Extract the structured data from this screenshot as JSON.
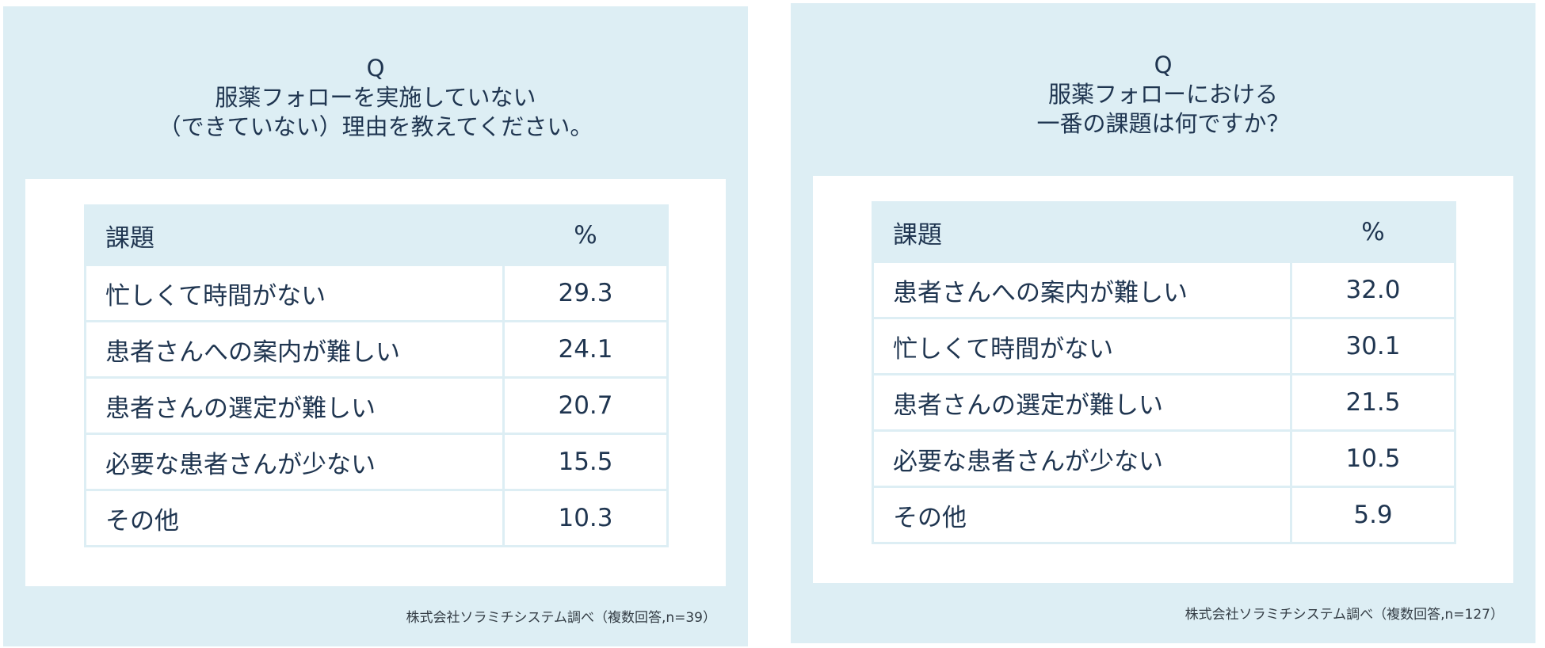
{
  "chart_data": [
    {
      "type": "table",
      "question": [
        "Q",
        "服薬フォローを実施していない",
        "（できていない）理由を教えてください。"
      ],
      "columns": [
        "課題",
        "%"
      ],
      "rows": [
        {
          "label": "忙しくて時間がない",
          "value": "29.3"
        },
        {
          "label": "患者さんへの案内が難しい",
          "value": "24.1"
        },
        {
          "label": "患者さんの選定が難しい",
          "value": "20.7"
        },
        {
          "label": "必要な患者さんが少ない",
          "value": "15.5"
        },
        {
          "label": "その他",
          "value": "10.3"
        }
      ],
      "source": "株式会社ソラミチシステム調べ（複数回答,n=39）"
    },
    {
      "type": "table",
      "question": [
        "Q",
        "服薬フォローにおける",
        "一番の課題は何ですか？"
      ],
      "columns": [
        "課題",
        "%"
      ],
      "rows": [
        {
          "label": "患者さんへの案内が難しい",
          "value": "32.0"
        },
        {
          "label": "忙しくて時間がない",
          "value": "30.1"
        },
        {
          "label": "患者さんの選定が難しい",
          "value": "21.5"
        },
        {
          "label": "必要な患者さんが少ない",
          "value": "10.5"
        },
        {
          "label": "その他",
          "value": "5.9"
        }
      ],
      "source": "株式会社ソラミチシステム調べ（複数回答,n=127）"
    }
  ],
  "colors": {
    "panel_background": "#ddeef4",
    "card_background": "#ffffff",
    "text": "#1f3550"
  }
}
